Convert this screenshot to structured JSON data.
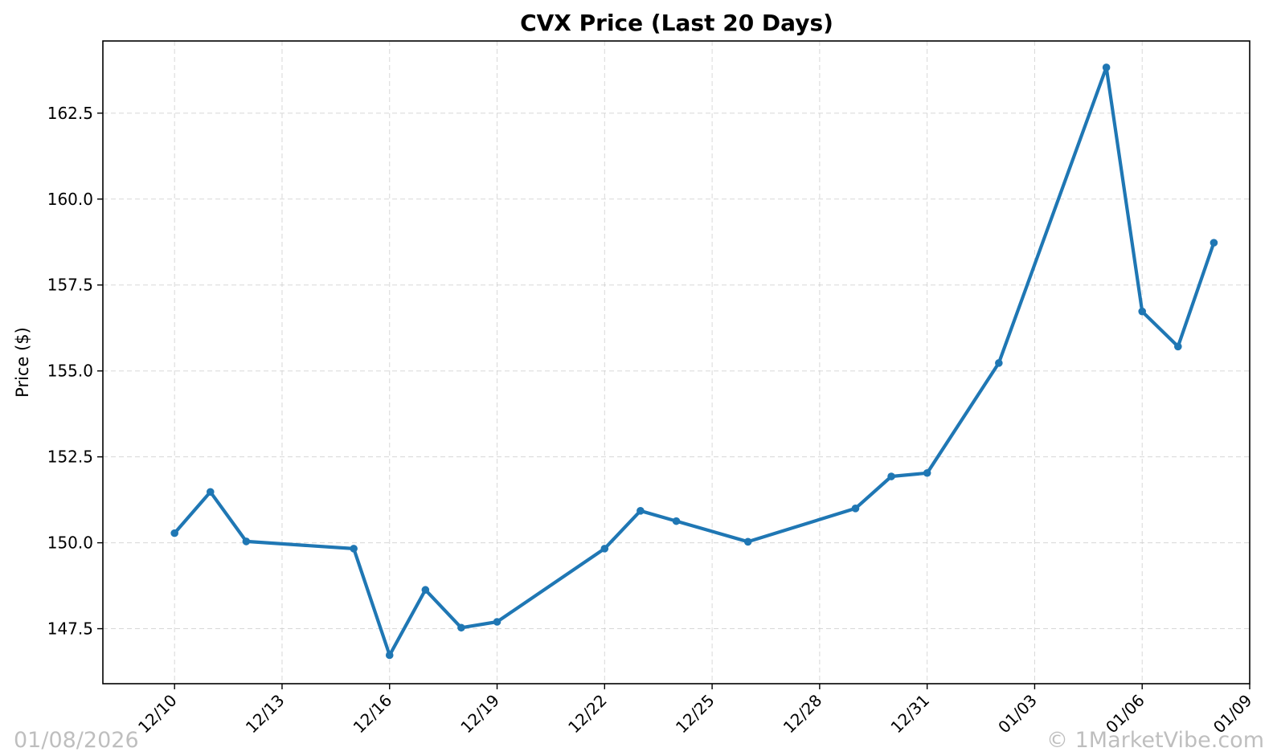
{
  "chart_data": {
    "type": "line",
    "title": "CVX Price (Last 20 Days)",
    "xlabel": "",
    "ylabel": "Price ($)",
    "x": [
      "2025-12-10",
      "2025-12-11",
      "2025-12-12",
      "2025-12-15",
      "2025-12-16",
      "2025-12-17",
      "2025-12-18",
      "2025-12-19",
      "2025-12-22",
      "2025-12-23",
      "2025-12-24",
      "2025-12-26",
      "2025-12-29",
      "2025-12-30",
      "2025-12-31",
      "2026-01-02",
      "2026-01-05",
      "2026-01-06",
      "2026-01-07",
      "2026-01-08"
    ],
    "series": [
      {
        "name": "",
        "color": "#1f77b4",
        "values": [
          150.28,
          151.48,
          150.04,
          149.83,
          146.73,
          148.63,
          147.53,
          147.7,
          149.83,
          150.93,
          150.63,
          150.03,
          151.0,
          151.93,
          152.03,
          155.23,
          163.83,
          156.73,
          155.71,
          158.73
        ]
      }
    ],
    "xticks": [
      "12/10",
      "12/13",
      "12/16",
      "12/19",
      "12/22",
      "12/25",
      "12/28",
      "12/31",
      "01/03",
      "01/06",
      "01/09"
    ],
    "xtick_dates": [
      "2025-12-10",
      "2025-12-13",
      "2025-12-16",
      "2025-12-19",
      "2025-12-22",
      "2025-12-25",
      "2025-12-28",
      "2025-12-31",
      "2026-01-03",
      "2026-01-06",
      "2026-01-09"
    ],
    "xlim": [
      "2025-12-08",
      "2026-01-09"
    ],
    "yticks": [
      "147.5",
      "150.0",
      "152.5",
      "155.0",
      "157.5",
      "160.0",
      "162.5"
    ],
    "ylim": [
      145.9,
      164.6
    ],
    "grid": true
  },
  "watermarks": {
    "date": "01/08/2026",
    "copyright": "© 1MarketVibe.com"
  }
}
